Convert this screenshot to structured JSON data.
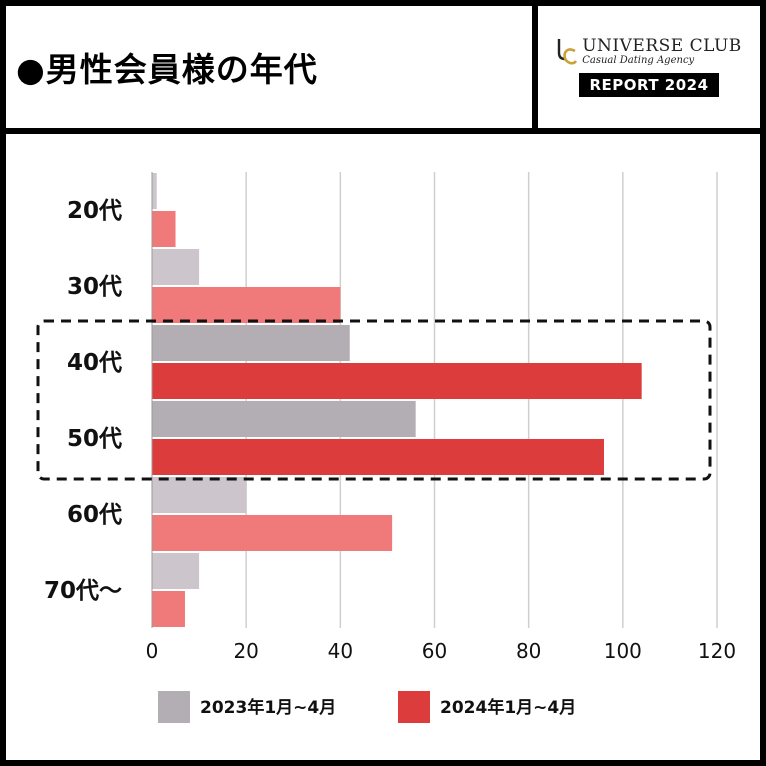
{
  "header": {
    "title": "●男性会員様の年代",
    "logo": {
      "brand": "UNIVERSE CLUB",
      "tagline": "Casual Dating Agency",
      "badge": "REPORT 2024"
    }
  },
  "chart_data": {
    "type": "bar",
    "orientation": "horizontal",
    "categories": [
      "20代",
      "30代",
      "40代",
      "50代",
      "60代",
      "70代〜"
    ],
    "series": [
      {
        "name": "2023年1月~4月",
        "values": [
          1,
          10,
          42,
          56,
          20,
          10
        ],
        "color": "#b3aeb4"
      },
      {
        "name": "2024年1月~4月",
        "values": [
          5,
          40,
          104,
          96,
          51,
          7
        ],
        "color": "#e65a5a"
      }
    ],
    "xlim": [
      0,
      120
    ],
    "xticks": [
      "0",
      "20",
      "40",
      "60",
      "80",
      "100",
      "120"
    ],
    "grid": true,
    "legend_position": "bottom",
    "highlight": [
      "40代",
      "50代"
    ],
    "colors": {
      "series_2023_light": "#ccc6cc",
      "series_2023_dark": "#b3aeb4",
      "series_2024_light": "#f07a7a",
      "series_2024_dark": "#dc3c3c",
      "grid": "#cfcfcf"
    }
  }
}
